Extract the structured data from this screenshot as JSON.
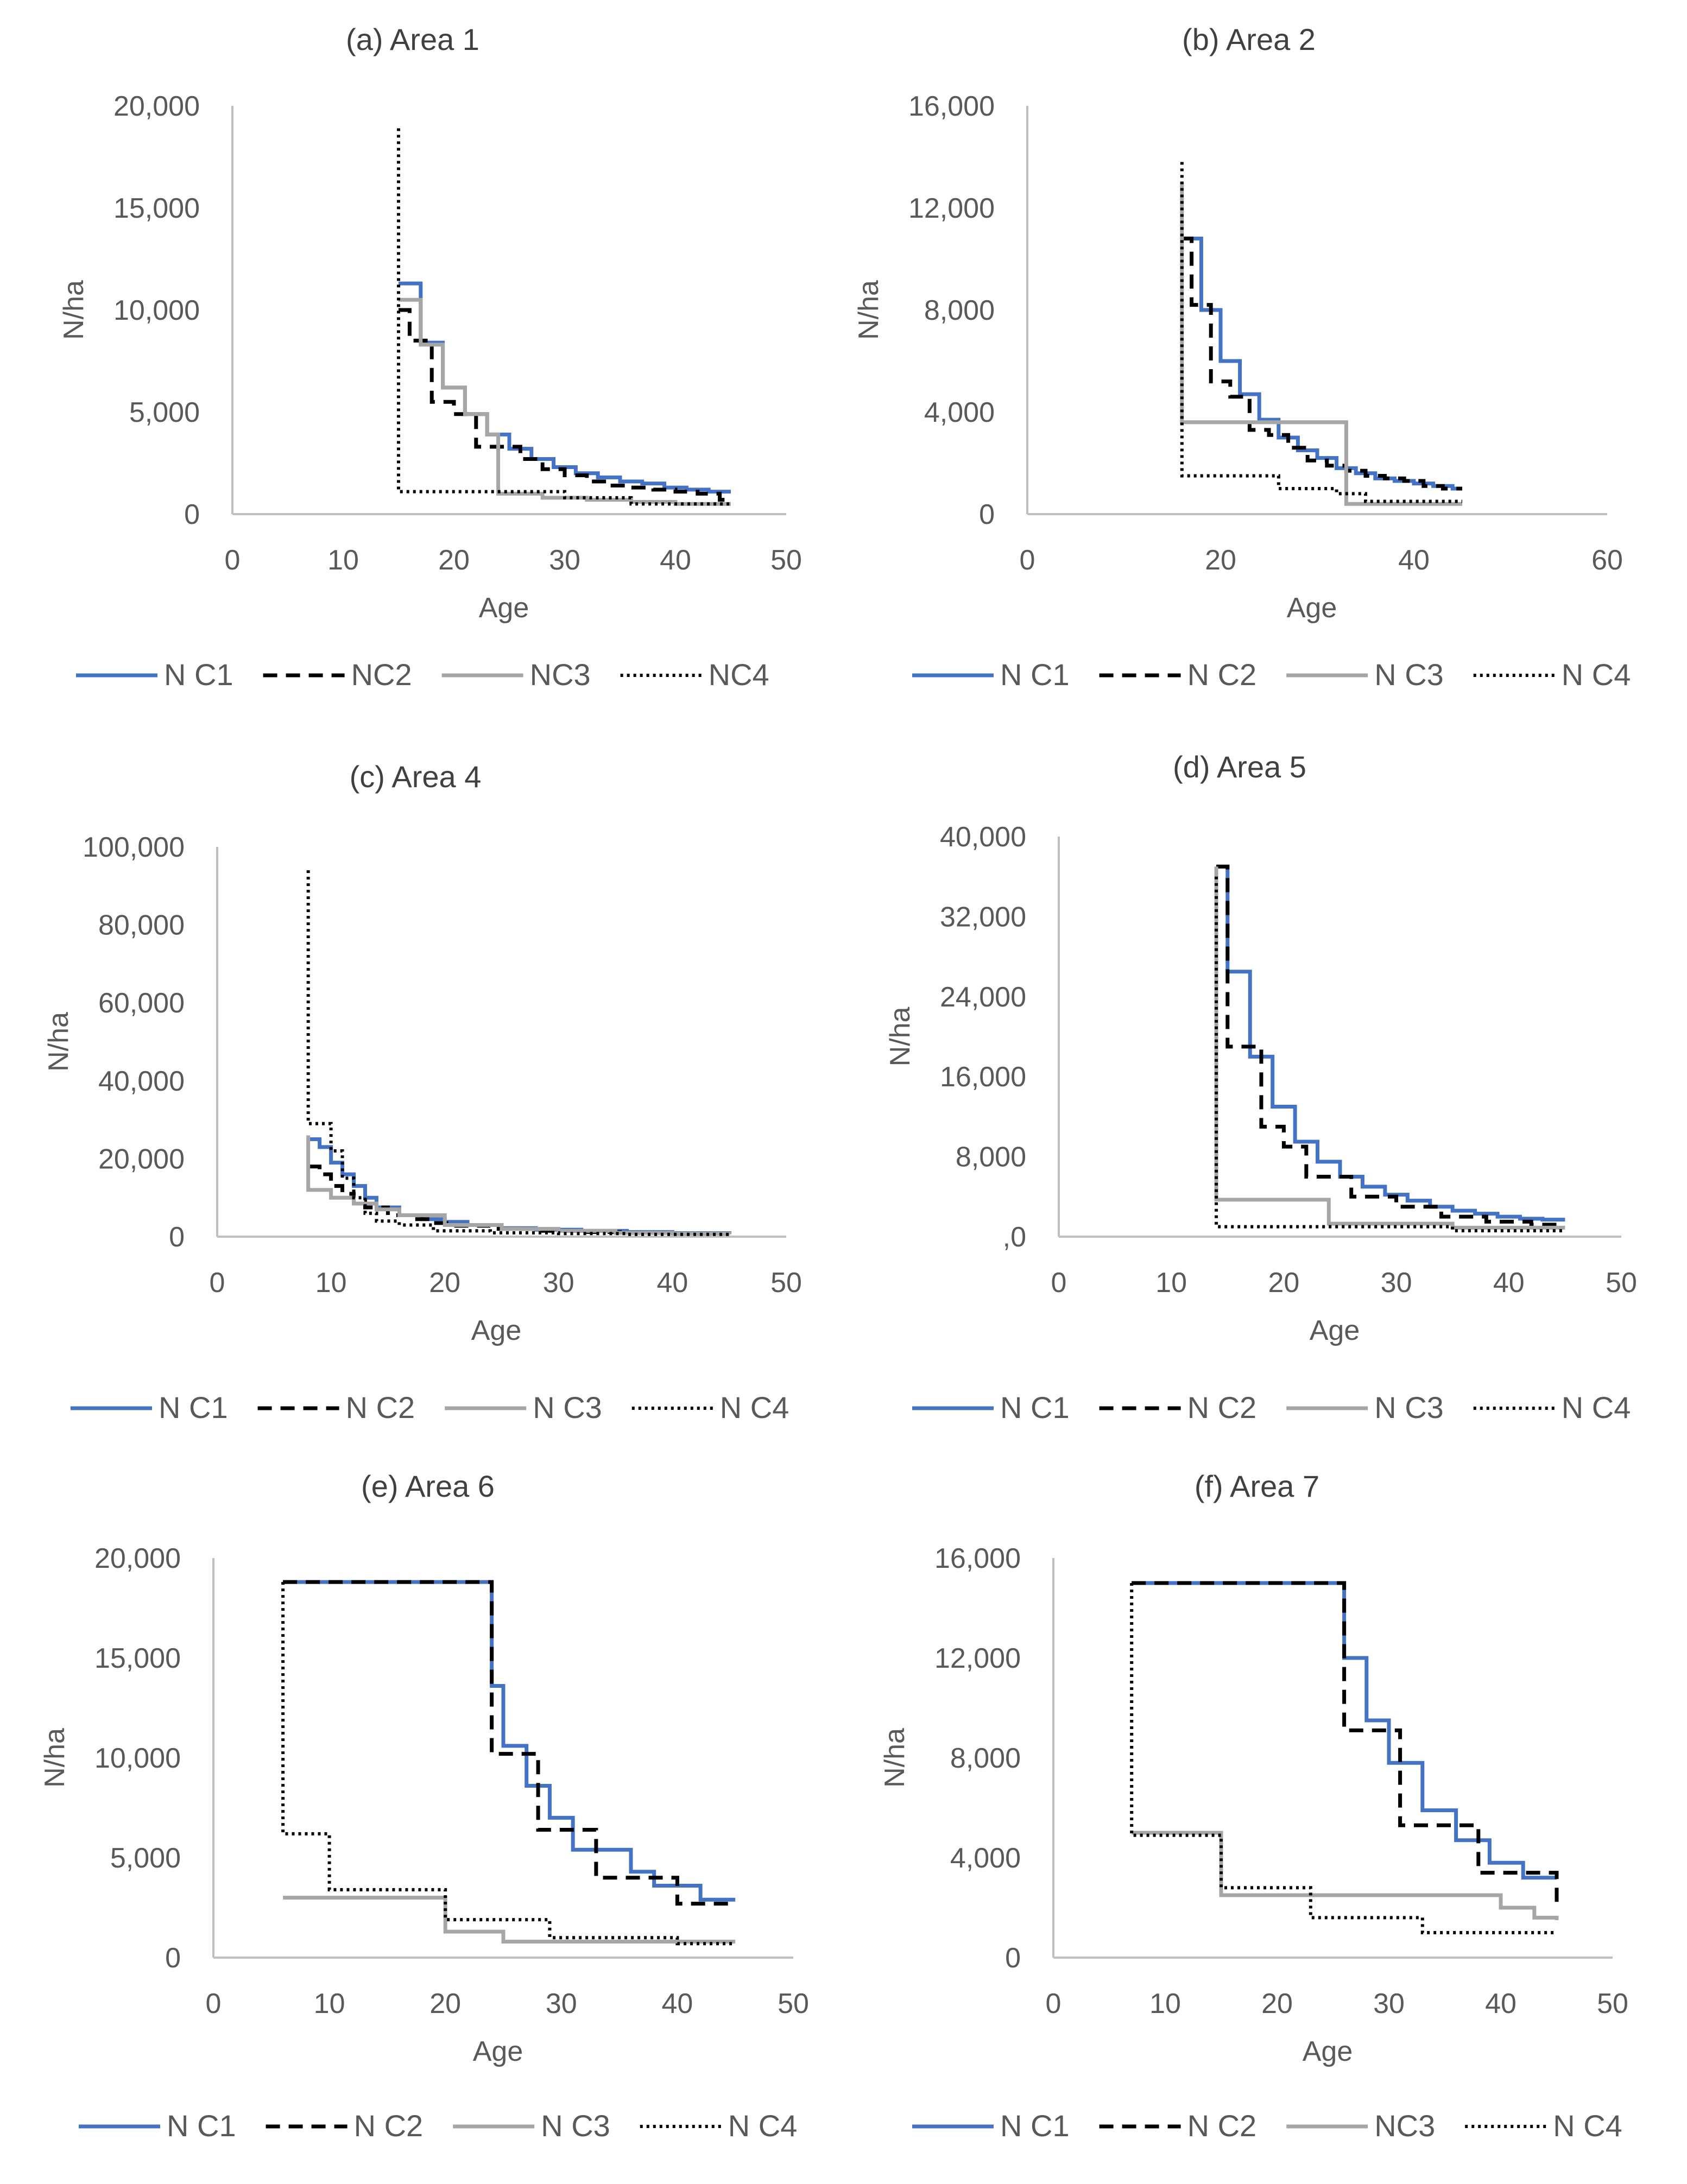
{
  "colors": {
    "c1": "#4472c4",
    "c2": "#000000",
    "c3": "#a6a6a6",
    "c4": "#000000"
  },
  "chart_data": [
    {
      "type": "line",
      "step": true,
      "title": "(a) Area 1",
      "xlabel": "Age",
      "ylabel": "N/ha",
      "xlim": [
        0,
        50
      ],
      "ylim": [
        0,
        20000
      ],
      "xticks": [
        0,
        10,
        20,
        30,
        40,
        50
      ],
      "yticks": [
        0,
        5000,
        10000,
        15000,
        20000
      ],
      "ytick_labels": [
        "0",
        "5,000",
        "10,000",
        "15,000",
        "20,000"
      ],
      "series": [
        {
          "name": "N C1",
          "style": "c1",
          "x": [
            15,
            17,
            19,
            21,
            23,
            25,
            27,
            29,
            31,
            33,
            35,
            37,
            39,
            41,
            43,
            45
          ],
          "y": [
            11300,
            8400,
            6200,
            4900,
            3900,
            3200,
            2700,
            2300,
            2000,
            1800,
            1600,
            1500,
            1300,
            1200,
            1100,
            1100
          ]
        },
        {
          "name": "NC2",
          "style": "c2",
          "x": [
            15,
            16,
            18,
            20,
            22,
            24,
            26,
            28,
            30,
            32,
            34,
            36,
            38,
            40,
            42,
            44,
            45
          ],
          "y": [
            10000,
            8500,
            5500,
            4900,
            3300,
            3300,
            2700,
            2200,
            1900,
            1600,
            1400,
            1300,
            1200,
            1100,
            1000,
            700,
            700
          ]
        },
        {
          "name": "NC3",
          "style": "c3",
          "x": [
            15,
            16,
            17,
            19,
            21,
            23,
            24,
            26,
            28,
            30,
            32,
            34,
            36,
            38,
            40,
            42,
            44,
            45
          ],
          "y": [
            10500,
            10500,
            8300,
            6200,
            4900,
            3900,
            1000,
            1000,
            800,
            800,
            700,
            700,
            600,
            600,
            500,
            500,
            500,
            500
          ]
        },
        {
          "name": "NC4",
          "style": "c4",
          "x": [
            15,
            15,
            20,
            30,
            36,
            45
          ],
          "y": [
            18900,
            1100,
            1100,
            800,
            500,
            500
          ]
        }
      ]
    },
    {
      "type": "line",
      "step": true,
      "title": "(b) Area 2",
      "xlabel": "Age",
      "ylabel": "N/ha",
      "xlim": [
        0,
        60
      ],
      "ylim": [
        0,
        16000
      ],
      "xticks": [
        0,
        20,
        40,
        60
      ],
      "yticks": [
        0,
        4000,
        8000,
        12000,
        16000
      ],
      "ytick_labels": [
        "0",
        "4,000",
        "8,000",
        "12,000",
        "16,000"
      ],
      "series": [
        {
          "name": "N C1",
          "style": "c1",
          "x": [
            16,
            18,
            20,
            22,
            24,
            26,
            28,
            30,
            32,
            34,
            36,
            38,
            40,
            42,
            44,
            45
          ],
          "y": [
            10800,
            8000,
            6000,
            4700,
            3700,
            3000,
            2500,
            2200,
            1800,
            1600,
            1400,
            1300,
            1200,
            1100,
            1000,
            1000
          ]
        },
        {
          "name": "N C2",
          "style": "c2",
          "x": [
            16,
            17,
            19,
            21,
            23,
            25,
            27,
            29,
            31,
            33,
            35,
            37,
            39,
            41,
            43,
            45
          ],
          "y": [
            10800,
            8200,
            5200,
            4600,
            3300,
            3100,
            2600,
            2100,
            1900,
            1700,
            1500,
            1400,
            1300,
            1100,
            1000,
            1000
          ]
        },
        {
          "name": "N C3",
          "style": "c3",
          "x": [
            16,
            16,
            32,
            33,
            45
          ],
          "y": [
            13000,
            3600,
            3600,
            400,
            400
          ]
        },
        {
          "name": "N C4",
          "style": "c4",
          "x": [
            16,
            16,
            26,
            32,
            35,
            45
          ],
          "y": [
            13800,
            1500,
            1000,
            800,
            500,
            500
          ]
        }
      ]
    },
    {
      "type": "line",
      "step": true,
      "title": "(c) Area 4",
      "xlabel": "Age",
      "ylabel": "N/ha",
      "xlim": [
        0,
        50
      ],
      "ylim": [
        0,
        100000
      ],
      "xticks": [
        0,
        10,
        20,
        30,
        40,
        50
      ],
      "yticks": [
        0,
        20000,
        40000,
        60000,
        80000,
        100000
      ],
      "ytick_labels": [
        "0",
        "20,000",
        "40,000",
        "60,000",
        "80,000",
        "100,000"
      ],
      "series": [
        {
          "name": "N C1",
          "style": "c1",
          "x": [
            8,
            9,
            10,
            11,
            12,
            13,
            14,
            16,
            18,
            20,
            22,
            25,
            28,
            32,
            36,
            40,
            45
          ],
          "y": [
            25000,
            23000,
            19000,
            16000,
            13000,
            10000,
            7500,
            5500,
            4500,
            3800,
            3000,
            2200,
            1800,
            1500,
            1200,
            900,
            800
          ]
        },
        {
          "name": "N C2",
          "style": "c2",
          "x": [
            8,
            9,
            10,
            11,
            12,
            13,
            15,
            17,
            19,
            21,
            24,
            28,
            32,
            36,
            40,
            45
          ],
          "y": [
            18000,
            16000,
            13000,
            11000,
            9000,
            7500,
            5500,
            4500,
            3500,
            2800,
            2000,
            1500,
            1200,
            1000,
            800,
            700
          ]
        },
        {
          "name": "N C3",
          "style": "c3",
          "x": [
            8,
            8,
            10,
            12,
            14,
            16,
            20,
            25,
            30,
            35,
            40,
            45
          ],
          "y": [
            26000,
            12000,
            10000,
            8500,
            7000,
            5500,
            3000,
            2000,
            1500,
            1000,
            800,
            600
          ]
        },
        {
          "name": "N C4",
          "style": "c4",
          "x": [
            8,
            8,
            10,
            11,
            12,
            13,
            14,
            16,
            19,
            24,
            30,
            36,
            45
          ],
          "y": [
            94000,
            29000,
            22000,
            15000,
            10000,
            6000,
            4000,
            3000,
            1500,
            1000,
            800,
            600,
            500
          ]
        }
      ]
    },
    {
      "type": "line",
      "step": true,
      "title": "(d) Area 5",
      "xlabel": "Age",
      "ylabel": "N/ha",
      "xlim": [
        0,
        50
      ],
      "ylim": [
        0,
        40000
      ],
      "xticks": [
        0,
        10,
        20,
        30,
        40,
        50
      ],
      "yticks": [
        0,
        8000,
        16000,
        24000,
        32000,
        40000
      ],
      "ytick_labels": [
        ",0",
        "8,000",
        "16,000",
        "24,000",
        "32,000",
        "40,000"
      ],
      "series": [
        {
          "name": "N C1",
          "style": "c1",
          "x": [
            14,
            15,
            17,
            19,
            21,
            23,
            25,
            27,
            29,
            31,
            33,
            35,
            37,
            39,
            41,
            43,
            45
          ],
          "y": [
            37000,
            26500,
            18000,
            13000,
            9500,
            7500,
            6000,
            5000,
            4200,
            3600,
            3000,
            2600,
            2300,
            2000,
            1800,
            1700,
            1700
          ]
        },
        {
          "name": "N C2",
          "style": "c2",
          "x": [
            14,
            15,
            16,
            18,
            20,
            22,
            24,
            26,
            28,
            30,
            32,
            34,
            36,
            38,
            40,
            42,
            44,
            45
          ],
          "y": [
            37000,
            19000,
            19000,
            11000,
            9000,
            6000,
            6000,
            4000,
            4000,
            3000,
            3000,
            2000,
            2000,
            1500,
            1500,
            1200,
            1200,
            1200
          ]
        },
        {
          "name": "N C3",
          "style": "c3",
          "x": [
            14,
            14,
            24,
            24,
            35,
            45
          ],
          "y": [
            37000,
            3700,
            3700,
            1300,
            900,
            900
          ]
        },
        {
          "name": "N C4",
          "style": "c4",
          "x": [
            14,
            14,
            25,
            35,
            45
          ],
          "y": [
            36000,
            1000,
            1000,
            600,
            600
          ]
        }
      ]
    },
    {
      "type": "line",
      "step": true,
      "title": "(e) Area 6",
      "xlabel": "Age",
      "ylabel": "N/ha",
      "xlim": [
        0,
        50
      ],
      "ylim": [
        0,
        20000
      ],
      "xticks": [
        0,
        10,
        20,
        30,
        40,
        50
      ],
      "yticks": [
        0,
        5000,
        10000,
        15000,
        20000
      ],
      "ytick_labels": [
        "0",
        "5,000",
        "10,000",
        "15,000",
        "20,000"
      ],
      "series": [
        {
          "name": "N C1",
          "style": "c1",
          "x": [
            6,
            24,
            25,
            27,
            29,
            31,
            33,
            36,
            38,
            40,
            42,
            45
          ],
          "y": [
            18800,
            13600,
            10600,
            8600,
            7000,
            5400,
            5400,
            4300,
            3600,
            3600,
            2900,
            2900
          ]
        },
        {
          "name": "N C2",
          "style": "c2",
          "x": [
            6,
            24,
            24,
            27,
            28,
            33,
            36,
            40,
            42,
            45
          ],
          "y": [
            18800,
            18800,
            10200,
            10200,
            6400,
            4000,
            4000,
            2700,
            2700,
            2700
          ]
        },
        {
          "name": "N C3",
          "style": "c3",
          "x": [
            6,
            20,
            20,
            22,
            25,
            45
          ],
          "y": [
            3000,
            3000,
            1300,
            1300,
            800,
            800
          ]
        },
        {
          "name": "N C4",
          "style": "c4",
          "x": [
            6,
            6,
            10,
            20,
            29,
            40,
            45
          ],
          "y": [
            18800,
            6200,
            3400,
            1900,
            1000,
            700,
            700
          ]
        }
      ]
    },
    {
      "type": "line",
      "step": true,
      "title": "(f) Area 7",
      "xlabel": "Age",
      "ylabel": "N/ha",
      "xlim": [
        0,
        50
      ],
      "ylim": [
        0,
        16000
      ],
      "xticks": [
        0,
        10,
        20,
        30,
        40,
        50
      ],
      "yticks": [
        0,
        4000,
        8000,
        12000,
        16000
      ],
      "ytick_labels": [
        "0",
        "4,000",
        "8,000",
        "12,000",
        "16,000"
      ],
      "series": [
        {
          "name": "N C1",
          "style": "c1",
          "x": [
            7,
            26,
            26,
            28,
            30,
            33,
            36,
            39,
            42,
            45
          ],
          "y": [
            15000,
            15000,
            12000,
            9500,
            7800,
            5900,
            4700,
            3800,
            3200,
            3200
          ]
        },
        {
          "name": "N C2",
          "style": "c2",
          "x": [
            7,
            26,
            26,
            31,
            31,
            37,
            38,
            44,
            45
          ],
          "y": [
            15000,
            15000,
            9100,
            9100,
            5300,
            5300,
            3400,
            3400,
            2200
          ]
        },
        {
          "name": "NC3",
          "style": "c3",
          "x": [
            7,
            15,
            15,
            37,
            40,
            43,
            45
          ],
          "y": [
            5000,
            5000,
            2500,
            2500,
            2000,
            1600,
            1500
          ]
        },
        {
          "name": "N C4",
          "style": "c4",
          "x": [
            7,
            7,
            15,
            23,
            33,
            45
          ],
          "y": [
            15000,
            4900,
            2800,
            1600,
            1000,
            1000
          ]
        }
      ]
    }
  ]
}
